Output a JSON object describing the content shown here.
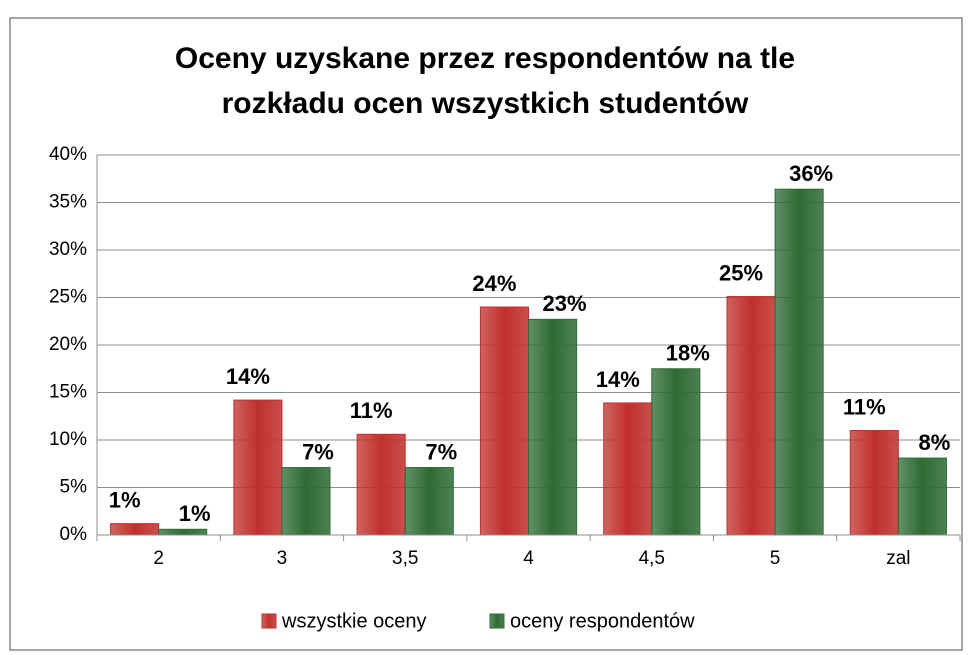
{
  "chart_data": {
    "type": "bar",
    "title_lines": [
      "Oceny uzyskane przez respondentów na tle",
      "rozkładu ocen wszystkich studentów"
    ],
    "categories": [
      "2",
      "3",
      "3,5",
      "4",
      "4,5",
      "5",
      "zal"
    ],
    "series": [
      {
        "name": "wszystkie oceny",
        "color": "#c0302c",
        "values": [
          1.2,
          14.2,
          10.6,
          24,
          13.9,
          25.1,
          11
        ],
        "value_labels": [
          "1%",
          "14%",
          "11%",
          "24%",
          "14%",
          "25%",
          "11%"
        ]
      },
      {
        "name": "oceny respondentów",
        "color": "#2e6b34",
        "values": [
          0.6,
          7.1,
          7.1,
          22.7,
          17.5,
          36.4,
          8.1
        ],
        "value_labels": [
          "1%",
          "7%",
          "7%",
          "23%",
          "18%",
          "36%",
          "8%"
        ]
      }
    ],
    "ylim": [
      0,
      40
    ],
    "yticks": [
      {
        "value": 0,
        "label": "0%"
      },
      {
        "value": 5,
        "label": "5%"
      },
      {
        "value": 10,
        "label": "10%"
      },
      {
        "value": 15,
        "label": "15%"
      },
      {
        "value": 20,
        "label": "20%"
      },
      {
        "value": 25,
        "label": "25%"
      },
      {
        "value": 30,
        "label": "30%"
      },
      {
        "value": 35,
        "label": "35%"
      },
      {
        "value": 40,
        "label": "40%"
      }
    ],
    "grid": true,
    "legend": "bottom"
  }
}
